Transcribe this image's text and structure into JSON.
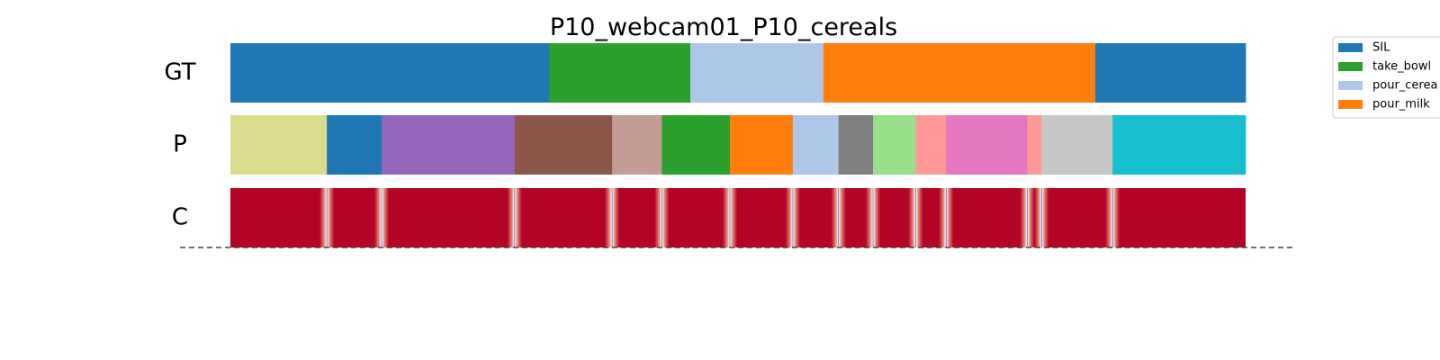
{
  "chart_data": {
    "type": "segmentation-timeline",
    "title": "P10_webcam01_P10_cereals",
    "x_range": [
      0,
      1
    ],
    "rows": [
      {
        "label": "GT",
        "segments": [
          {
            "start": 0.0,
            "end": 0.314,
            "color": "#1f77b4"
          },
          {
            "start": 0.314,
            "end": 0.453,
            "color": "#2ca02c"
          },
          {
            "start": 0.453,
            "end": 0.584,
            "color": "#aec7e8"
          },
          {
            "start": 0.584,
            "end": 0.852,
            "color": "#ff7f0e"
          },
          {
            "start": 0.852,
            "end": 1.0,
            "color": "#1f77b4"
          }
        ]
      },
      {
        "label": "P",
        "segments": [
          {
            "start": 0.0,
            "end": 0.095,
            "color": "#dbdb8d"
          },
          {
            "start": 0.095,
            "end": 0.149,
            "color": "#1f77b4"
          },
          {
            "start": 0.149,
            "end": 0.28,
            "color": "#9467bd"
          },
          {
            "start": 0.28,
            "end": 0.376,
            "color": "#8c564b"
          },
          {
            "start": 0.376,
            "end": 0.425,
            "color": "#c49c94"
          },
          {
            "start": 0.425,
            "end": 0.492,
            "color": "#2ca02c"
          },
          {
            "start": 0.492,
            "end": 0.554,
            "color": "#ff7f0e"
          },
          {
            "start": 0.554,
            "end": 0.599,
            "color": "#aec7e8"
          },
          {
            "start": 0.599,
            "end": 0.633,
            "color": "#7f7f7f"
          },
          {
            "start": 0.633,
            "end": 0.675,
            "color": "#98df8a"
          },
          {
            "start": 0.675,
            "end": 0.705,
            "color": "#ff9896"
          },
          {
            "start": 0.705,
            "end": 0.785,
            "color": "#e377c2"
          },
          {
            "start": 0.785,
            "end": 0.799,
            "color": "#ff9896"
          },
          {
            "start": 0.799,
            "end": 0.869,
            "color": "#c7c7c7"
          },
          {
            "start": 0.869,
            "end": 1.0,
            "color": "#17becf"
          }
        ]
      },
      {
        "label": "C",
        "confidence_boundaries": [
          0.095,
          0.149,
          0.28,
          0.376,
          0.425,
          0.492,
          0.554,
          0.599,
          0.633,
          0.675,
          0.705,
          0.785,
          0.799,
          0.869
        ],
        "colors": {
          "high": "#b40426",
          "mid": "#f7f7f7",
          "low": "#3b4cc0"
        }
      }
    ],
    "legend": {
      "placement": "right",
      "entries": [
        {
          "label": "SIL",
          "color": "#1f77b4"
        },
        {
          "label": "take_bowl",
          "color": "#2ca02c"
        },
        {
          "label": "pour_cerea",
          "color": "#aec7e8"
        },
        {
          "label": "pour_milk",
          "color": "#ff7f0e"
        }
      ]
    }
  }
}
